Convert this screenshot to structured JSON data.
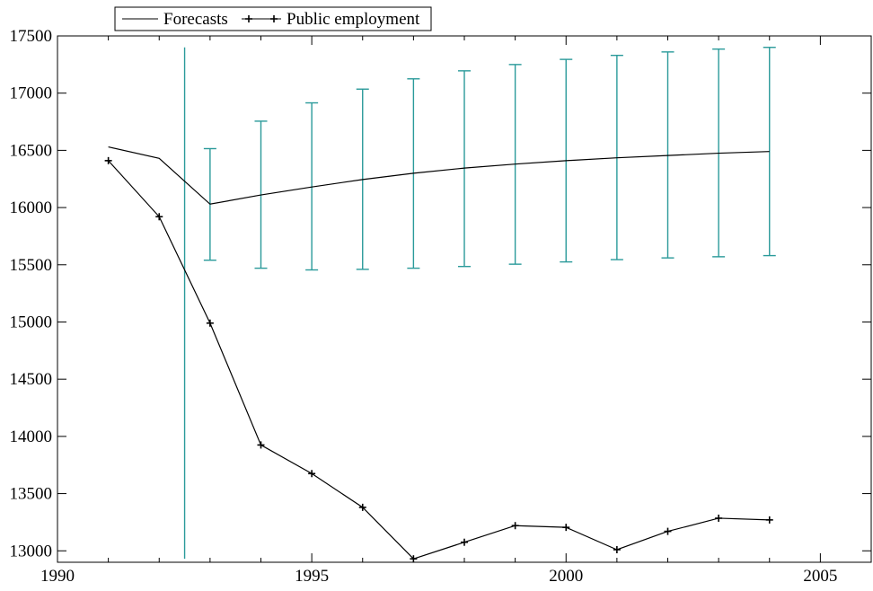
{
  "chart_data": {
    "type": "line",
    "title": "",
    "xlabel": "",
    "ylabel": "",
    "xlim": [
      1990,
      2006
    ],
    "ylim": [
      12900,
      17500
    ],
    "x_ticks": [
      1990,
      1995,
      2000,
      2005
    ],
    "y_ticks": [
      13000,
      13500,
      14000,
      14500,
      15000,
      15500,
      16000,
      16500,
      17000,
      17500
    ],
    "grid": false,
    "legend": {
      "placement": "top-left",
      "entries": [
        "Forecasts",
        "Public employment"
      ]
    },
    "series": [
      {
        "name": "Forecasts",
        "color": "#000000",
        "marker": "none",
        "x": [
          1991,
          1992,
          1993,
          1994,
          1995,
          1996,
          1997,
          1998,
          1999,
          2000,
          2001,
          2002,
          2003,
          2004
        ],
        "y": [
          16530,
          16430,
          16030,
          16110,
          16180,
          16245,
          16300,
          16345,
          16380,
          16410,
          16435,
          16455,
          16475,
          16490
        ]
      },
      {
        "name": "Public employment",
        "color": "#000000",
        "marker": "plus",
        "x": [
          1991,
          1992,
          1993,
          1994,
          1995,
          1996,
          1997,
          1998,
          1999,
          2000,
          2001,
          2002,
          2003,
          2004
        ],
        "y": [
          16410,
          15920,
          14990,
          13925,
          13675,
          13380,
          12930,
          13075,
          13220,
          13205,
          13010,
          13170,
          13285,
          13270
        ]
      }
    ],
    "error_bars": {
      "color": "#2a9a9a",
      "x": [
        1993,
        1994,
        1995,
        1996,
        1997,
        1998,
        1999,
        2000,
        2001,
        2002,
        2003,
        2004
      ],
      "lower": [
        15540,
        15470,
        15455,
        15460,
        15470,
        15485,
        15505,
        15525,
        15545,
        15560,
        15570,
        15580
      ],
      "upper": [
        16515,
        16755,
        16915,
        17035,
        17125,
        17195,
        17250,
        17295,
        17330,
        17360,
        17385,
        17400
      ]
    },
    "forecast_start_line": {
      "x": 1992.5,
      "y_from": 12930,
      "y_to": 17400,
      "color": "#2a9a9a"
    }
  }
}
